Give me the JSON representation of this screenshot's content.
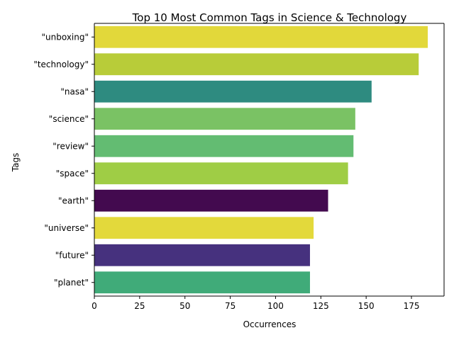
{
  "chart_data": {
    "type": "bar",
    "orientation": "horizontal",
    "title": "Top 10 Most Common Tags in Science & Technology",
    "xlabel": "Occurrences",
    "ylabel": "Tags",
    "xlim": [
      0,
      193
    ],
    "xticks": [
      0,
      25,
      50,
      75,
      100,
      125,
      150,
      175
    ],
    "grid": false,
    "categories": [
      "\"unboxing\"",
      "\"technology\"",
      "\"nasa\"",
      "\"science\"",
      "\"review\"",
      "\"space\"",
      "\"earth\"",
      "\"universe\"",
      "\"future\"",
      "\"planet\""
    ],
    "values": [
      184,
      179,
      153,
      144,
      143,
      140,
      129,
      121,
      119,
      119
    ],
    "colors": [
      "#e2d83a",
      "#b8cc39",
      "#2e8b80",
      "#7ac264",
      "#63bc72",
      "#9fcd45",
      "#430a4f",
      "#e3d93b",
      "#46317e",
      "#40ab79"
    ]
  }
}
